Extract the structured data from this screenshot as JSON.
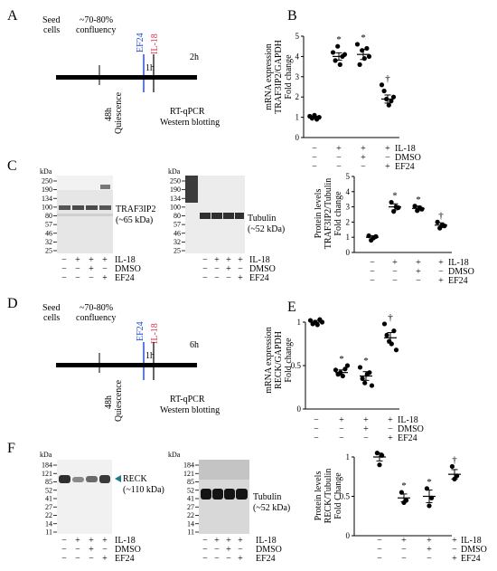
{
  "panels": {
    "A": {
      "letter": "A",
      "seed": [
        "Seed",
        "cells"
      ],
      "confluency": [
        "~70-80%",
        "confluency"
      ],
      "ef24": "EF24",
      "il18": "IL-18",
      "one_h": "1h",
      "end_time": "2h",
      "quiescence": [
        "48h",
        "Quiescence"
      ],
      "assays": [
        "RT-qPCR",
        "Western blotting"
      ],
      "colors": {
        "ef24": "#2b4fd6",
        "il18": "#e0304a"
      }
    },
    "B": {
      "letter": "B",
      "ylabel": [
        "mRNA expression",
        "TRAF3IP2/GAPDH",
        "Fold change"
      ],
      "conditions": {
        "labels": [
          "IL-18",
          "DMSO",
          "EF24"
        ],
        "rows": [
          [
            "−",
            "+",
            "+",
            "+"
          ],
          [
            "−",
            "−",
            "+",
            "−"
          ],
          [
            "−",
            "−",
            "−",
            "+"
          ]
        ]
      }
    },
    "C": {
      "letter": "C",
      "blot1": {
        "kda": "kDa",
        "markers": [
          "250",
          "190",
          "134",
          "100",
          "80",
          "57",
          "46",
          "32",
          "25"
        ],
        "band": "TRAF3IP2",
        "size": "(~65 kDa)"
      },
      "blot2": {
        "kda": "kDa",
        "markers": [
          "250",
          "190",
          "134",
          "100",
          "80",
          "57",
          "46",
          "32",
          "25"
        ],
        "band": "Tubulin",
        "size": "(~52 kDa)"
      },
      "lanes": {
        "labels": [
          "IL-18",
          "DMSO",
          "EF24"
        ],
        "rows": [
          [
            "−",
            "+",
            "+",
            "+"
          ],
          [
            "−",
            "−",
            "+",
            "−"
          ],
          [
            "−",
            "−",
            "−",
            "+"
          ]
        ]
      },
      "ylabel": [
        "Protein levels",
        "TRAF3IP2/Tubulin",
        "Fold change"
      ],
      "conditions": {
        "labels": [
          "IL-18",
          "DMSO",
          "EF24"
        ],
        "rows": [
          [
            "−",
            "+",
            "+",
            "+"
          ],
          [
            "−",
            "−",
            "+",
            "−"
          ],
          [
            "−",
            "−",
            "−",
            "+"
          ]
        ]
      }
    },
    "D": {
      "letter": "D",
      "seed": [
        "Seed",
        "cells"
      ],
      "confluency": [
        "~70-80%",
        "confluency"
      ],
      "ef24": "EF24",
      "il18": "IL-18",
      "one_h": "1h",
      "end_time": "6h",
      "quiescence": [
        "48h",
        "Quiescence"
      ],
      "assays": [
        "RT-qPCR",
        "Western blotting"
      ]
    },
    "E": {
      "letter": "E",
      "ylabel": [
        "mRNA expression",
        "RECK/GAPDH",
        "Fold change"
      ],
      "conditions": {
        "labels": [
          "IL-18",
          "DMSO",
          "EF24"
        ],
        "rows": [
          [
            "−",
            "+",
            "+",
            "+"
          ],
          [
            "−",
            "−",
            "+",
            "−"
          ],
          [
            "−",
            "−",
            "−",
            "+"
          ]
        ]
      }
    },
    "F": {
      "letter": "F",
      "blot1": {
        "kda": "kDa",
        "markers": [
          "184",
          "121",
          "85",
          "52",
          "41",
          "27",
          "22",
          "14",
          "11"
        ],
        "band": "RECK",
        "size": "(~110 kDa)"
      },
      "blot2": {
        "kda": "kDa",
        "markers": [
          "184",
          "121",
          "85",
          "52",
          "41",
          "27",
          "22",
          "14",
          "11"
        ],
        "band": "Tubulin",
        "size": "(~52 kDa)"
      },
      "lanes": {
        "labels": [
          "IL-18",
          "DMSO",
          "EF24"
        ],
        "rows": [
          [
            "−",
            "+",
            "+",
            "+"
          ],
          [
            "−",
            "−",
            "+",
            "−"
          ],
          [
            "−",
            "−",
            "−",
            "+"
          ]
        ]
      },
      "ylabel": [
        "Protein levels",
        "RECK/Tubulin",
        "Fold Change"
      ],
      "conditions": {
        "labels": [
          "IL-18",
          "DMSO",
          "EF24"
        ],
        "rows": [
          [
            "−",
            "+",
            "+",
            "+"
          ],
          [
            "−",
            "−",
            "+",
            "−"
          ],
          [
            "−",
            "−",
            "−",
            "+"
          ]
        ]
      }
    }
  },
  "chart_data": [
    {
      "id": "B",
      "type": "scatter",
      "categories": [
        "1",
        "2",
        "3",
        "4"
      ],
      "ylim": [
        0,
        5
      ],
      "yticks": [
        0,
        1,
        2,
        3,
        4,
        5
      ],
      "yticklabels": [
        "0",
        "1",
        "2",
        "3",
        "4",
        "5"
      ],
      "means": [
        1.0,
        4.0,
        4.1,
        1.9
      ],
      "sem": [
        0.05,
        0.18,
        0.25,
        0.2
      ],
      "points": [
        [
          1.05,
          0.95,
          1.1,
          0.9,
          1.0
        ],
        [
          4.2,
          3.8,
          4.5,
          3.6,
          4.0,
          4.1
        ],
        [
          4.6,
          3.6,
          4.3,
          3.9,
          4.4,
          4.0
        ],
        [
          2.6,
          2.3,
          1.9,
          1.6,
          1.8,
          2.0
        ]
      ],
      "marks": [
        "",
        "*",
        "*",
        "†"
      ]
    },
    {
      "id": "C",
      "type": "scatter",
      "categories": [
        "1",
        "2",
        "3",
        "4"
      ],
      "ylim": [
        0,
        5
      ],
      "yticks": [
        0,
        1,
        2,
        3,
        4,
        5
      ],
      "yticklabels": [
        "0",
        "1",
        "2",
        "3",
        "4",
        "5"
      ],
      "means": [
        1.0,
        3.0,
        2.9,
        1.8
      ],
      "sem": [
        0.1,
        0.2,
        0.15,
        0.15
      ],
      "points": [
        [
          1.1,
          0.8,
          0.95,
          1.05
        ],
        [
          3.3,
          2.7,
          3.0,
          2.95
        ],
        [
          3.05,
          2.75,
          2.95,
          2.85
        ],
        [
          2.0,
          1.6,
          1.8,
          1.75
        ]
      ],
      "marks": [
        "",
        "*",
        "*",
        "†"
      ]
    },
    {
      "id": "E",
      "type": "scatter",
      "categories": [
        "1",
        "2",
        "3",
        "4"
      ],
      "ylim": [
        0,
        1
      ],
      "yticks": [
        0,
        0.5,
        1
      ],
      "yticklabels": [
        "0",
        "0.5",
        "1"
      ],
      "means": [
        1.0,
        0.42,
        0.38,
        0.82
      ],
      "sem": [
        0.02,
        0.03,
        0.05,
        0.06
      ],
      "points": [
        [
          1.02,
          0.98,
          1.0,
          0.97,
          1.03,
          1.0
        ],
        [
          0.45,
          0.4,
          0.42,
          0.38,
          0.46,
          0.5
        ],
        [
          0.48,
          0.35,
          0.3,
          0.4,
          0.42,
          0.27
        ],
        [
          0.98,
          0.85,
          0.78,
          0.75,
          0.9,
          0.68
        ]
      ],
      "marks": [
        "",
        "*",
        "*",
        "†"
      ]
    },
    {
      "id": "F",
      "type": "scatter",
      "categories": [
        "1",
        "2",
        "3",
        "4"
      ],
      "ylim": [
        0,
        1
      ],
      "yticks": [
        0,
        0.5,
        1
      ],
      "yticklabels": [
        "0",
        "0.5",
        "1"
      ],
      "means": [
        1.0,
        0.48,
        0.5,
        0.78
      ],
      "sem": [
        0.05,
        0.05,
        0.08,
        0.06
      ],
      "points": [
        [
          1.05,
          0.9,
          1.02
        ],
        [
          0.55,
          0.42,
          0.45
        ],
        [
          0.6,
          0.38,
          0.48
        ],
        [
          0.88,
          0.72,
          0.76
        ]
      ],
      "marks": [
        "",
        "*",
        "*",
        "†"
      ]
    }
  ]
}
